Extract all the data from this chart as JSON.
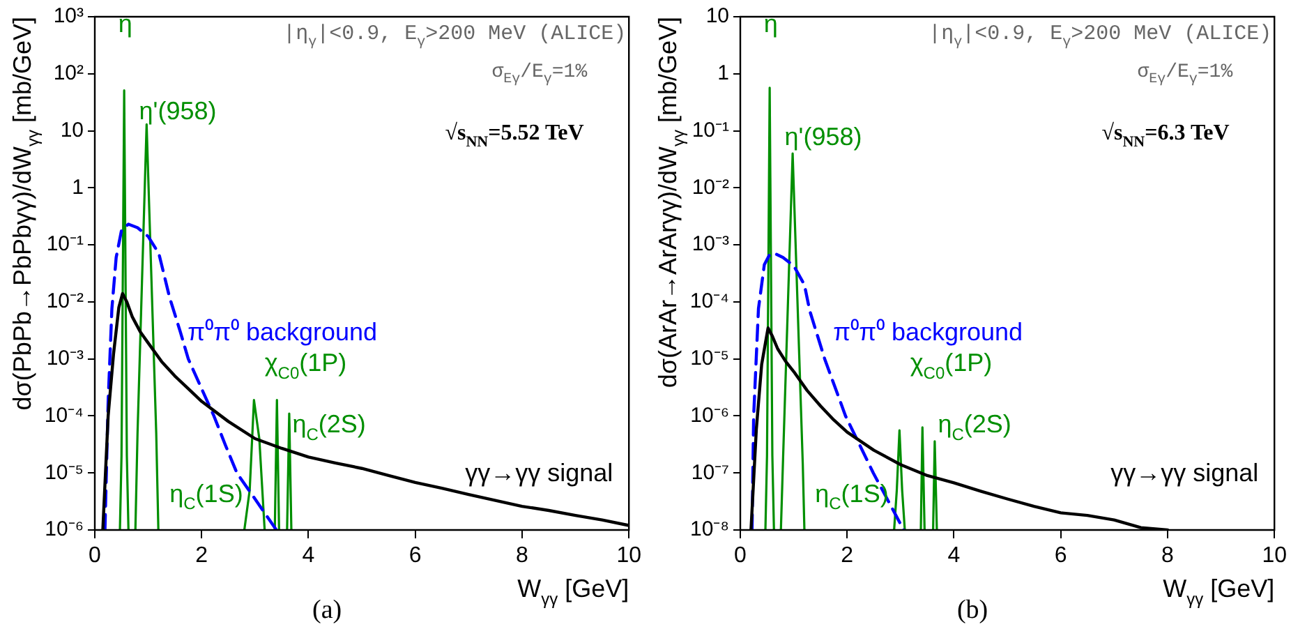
{
  "chart_data": [
    {
      "type": "line",
      "xlabel": "W$_{γγ}$ [GeV]",
      "ylabel": "dσ(PbPb→PbPbγγ)/dW$_{γγ}$ [mb/GeV]",
      "log": "y",
      "grid": false,
      "legend": false,
      "xlim": [
        0,
        10
      ],
      "xticks": [
        0,
        2,
        4,
        6,
        8,
        10
      ],
      "ylim": [
        1e-06,
        1000
      ],
      "yticks": [
        {
          "value": 1e-06,
          "label": "10⁻⁶"
        },
        {
          "value": 1e-05,
          "label": "10⁻⁵"
        },
        {
          "value": 0.0001,
          "label": "10⁻⁴"
        },
        {
          "value": 0.001,
          "label": "10⁻³"
        },
        {
          "value": 0.01,
          "label": "10⁻²"
        },
        {
          "value": 0.1,
          "label": "10⁻¹"
        },
        {
          "value": 1,
          "label": "1"
        },
        {
          "value": 10,
          "label": "10"
        },
        {
          "value": 100,
          "label": "10²"
        },
        {
          "value": 1000,
          "label": "10³"
        }
      ],
      "annotations": [
        "|η$_{γ}$|<0.9, E$_{γ}$>200 MeV (ALICE)",
        "σ$_{Eγ}$/E$_{γ}$=1%",
        "√s$_{NN}$=5.52 TeV",
        "(a)"
      ],
      "series": [
        {
          "name": "γγ→γγ signal",
          "color": "#000000",
          "x": [
            0.15,
            0.25,
            0.35,
            0.45,
            0.52,
            0.6,
            0.7,
            0.85,
            1,
            1.25,
            1.5,
            1.75,
            2,
            2.5,
            3,
            3.5,
            4,
            4.5,
            5,
            5.5,
            6,
            6.5,
            7,
            7.5,
            8,
            8.5,
            9,
            9.5,
            10
          ],
          "values": [
            1e-06,
            0.0001,
            0.0012,
            0.008,
            0.014,
            0.01,
            0.0055,
            0.003,
            0.0019,
            0.0009,
            0.0005,
            0.0003,
            0.00018,
            8e-05,
            4e-05,
            2.7e-05,
            1.9e-05,
            1.5e-05,
            1.2e-05,
            9e-06,
            6.8e-06,
            5.4e-06,
            4.2e-06,
            3.3e-06,
            2.6e-06,
            2.2e-06,
            1.8e-06,
            1.5e-06,
            1.2e-06
          ]
        },
        {
          "name": "π⁰π⁰ background",
          "color": "#0000ff",
          "line_style": "dashed",
          "x": [
            0.19,
            0.25,
            0.32,
            0.4,
            0.5,
            0.63,
            0.8,
            1,
            1.2,
            1.4,
            1.6,
            1.75,
            2,
            2.23,
            2.45,
            2.66,
            3,
            3.4
          ],
          "values": [
            1e-06,
            0.00018,
            0.0076,
            0.06,
            0.18,
            0.23,
            0.2,
            0.14,
            0.07,
            0.012,
            0.003,
            0.001,
            0.0003,
            0.0001,
            3e-05,
            1e-05,
            3.5e-06,
            1e-06
          ]
        },
        {
          "name": "η",
          "color": "#008f00",
          "x": [
            0.47,
            0.5,
            0.55,
            0.6,
            0.63
          ],
          "values": [
            1e-06,
            2e-05,
            51,
            2e-05,
            1e-06
          ]
        },
        {
          "name": "η'(958)",
          "color": "#008f00",
          "x": [
            0.76,
            0.8,
            0.97,
            1.15,
            1.19
          ],
          "values": [
            1e-06,
            5e-05,
            13,
            5e-05,
            1e-06
          ]
        },
        {
          "name": "η$_{C}$(1S)",
          "color": "#008f00",
          "x": [
            2.8,
            2.9,
            2.98,
            3.08,
            3.18
          ],
          "values": [
            1e-06,
            5e-06,
            0.00019,
            4e-05,
            1e-06
          ]
        },
        {
          "name": "χ$_{C0}$(1P)",
          "color": "#008f00",
          "x": [
            3.37,
            3.41,
            3.45
          ],
          "values": [
            1e-06,
            0.00019,
            1e-06
          ]
        },
        {
          "name": "η$_{C}$(2S)",
          "color": "#008f00",
          "x": [
            3.6,
            3.64,
            3.68
          ],
          "values": [
            1e-06,
            0.00011,
            1e-06
          ]
        }
      ]
    },
    {
      "type": "line",
      "xlabel": "W$_{γγ}$ [GeV]",
      "ylabel": "dσ(ArAr→ArArγγ)/dW$_{γγ}$ [mb/GeV]",
      "log": "y",
      "grid": false,
      "legend": false,
      "xlim": [
        0,
        10
      ],
      "xticks": [
        0,
        2,
        4,
        6,
        8,
        10
      ],
      "ylim": [
        1e-08,
        10
      ],
      "yticks": [
        {
          "value": 1e-08,
          "label": "10⁻⁸"
        },
        {
          "value": 1e-07,
          "label": "10⁻⁷"
        },
        {
          "value": 1e-06,
          "label": "10⁻⁶"
        },
        {
          "value": 1e-05,
          "label": "10⁻⁵"
        },
        {
          "value": 0.0001,
          "label": "10⁻⁴"
        },
        {
          "value": 0.001,
          "label": "10⁻³"
        },
        {
          "value": 0.01,
          "label": "10⁻²"
        },
        {
          "value": 0.1,
          "label": "10⁻¹"
        },
        {
          "value": 1,
          "label": "1"
        },
        {
          "value": 10,
          "label": "10"
        }
      ],
      "annotations": [
        "|η$_{γ}$|<0.9, E$_{γ}$>200 MeV (ALICE)",
        "σ$_{Eγ}$/E$_{γ}$=1%",
        "√s$_{NN}$=6.3 TeV",
        "(b)"
      ],
      "series": [
        {
          "name": "γγ→γγ signal",
          "color": "#000000",
          "x": [
            0.2,
            0.3,
            0.4,
            0.52,
            0.6,
            0.7,
            0.85,
            1,
            1.25,
            1.5,
            1.75,
            2,
            2.5,
            3,
            3.5,
            4,
            4.5,
            5,
            5.5,
            6,
            6.5,
            7,
            7.5,
            8
          ],
          "values": [
            1e-08,
            5.8e-07,
            8e-06,
            3.5e-05,
            2.5e-05,
            1.5e-05,
            9e-06,
            6e-06,
            2.8e-06,
            1.5e-06,
            8.5e-07,
            5.2e-07,
            2.5e-07,
            1.4e-07,
            9e-08,
            6.7e-08,
            4.8e-08,
            3.5e-08,
            2.6e-08,
            2e-08,
            1.8e-08,
            1.5e-08,
            1.1e-08,
            1e-08
          ]
        },
        {
          "name": "π⁰π⁰ background",
          "color": "#0000ff",
          "line_style": "dashed",
          "x": [
            0.22,
            0.25,
            0.34,
            0.45,
            0.55,
            0.65,
            0.8,
            1,
            1.2,
            1.3,
            1.58,
            1.97,
            2.49,
            3.06
          ],
          "values": [
            1e-08,
            1e-06,
            7.6e-05,
            0.00045,
            0.00068,
            0.0007,
            0.0006,
            0.00043,
            0.0002,
            7e-05,
            1e-05,
            1e-06,
            1e-07,
            1e-08
          ]
        },
        {
          "name": "η",
          "color": "#008f00",
          "x": [
            0.47,
            0.5,
            0.55,
            0.6,
            0.63
          ],
          "values": [
            1e-08,
            2e-07,
            0.57,
            2e-07,
            1e-08
          ]
        },
        {
          "name": "η'(958)",
          "color": "#008f00",
          "x": [
            0.76,
            0.8,
            0.98,
            1.17,
            1.2
          ],
          "values": [
            1e-08,
            1.7e-07,
            0.04,
            1.4e-07,
            1e-08
          ]
        },
        {
          "name": "η$_{C}$(1S)",
          "color": "#008f00",
          "x": [
            2.88,
            2.93,
            2.98,
            3.03,
            3.08
          ],
          "values": [
            1e-08,
            5e-08,
            5.6e-07,
            5e-08,
            1e-08
          ]
        },
        {
          "name": "χ$_{C0}$(1P)",
          "color": "#008f00",
          "x": [
            3.38,
            3.41,
            3.45
          ],
          "values": [
            1e-08,
            6.3e-07,
            1e-08
          ]
        },
        {
          "name": "η$_{C}$(2S)",
          "color": "#008f00",
          "x": [
            3.61,
            3.64,
            3.68
          ],
          "values": [
            1e-08,
            3.6e-07,
            1e-08
          ]
        }
      ]
    }
  ]
}
